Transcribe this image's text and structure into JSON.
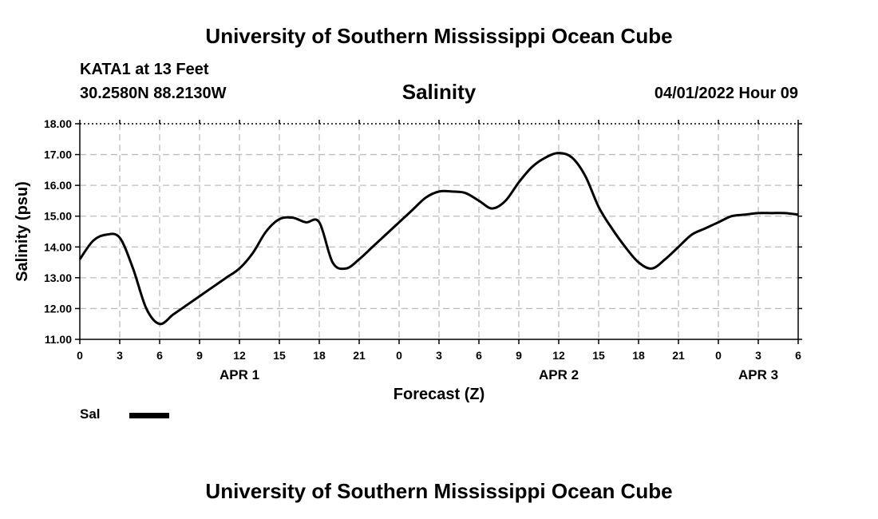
{
  "header": {
    "title": "University of Southern Mississippi Ocean Cube",
    "station": "KATA1 at 13 Feet",
    "coords": "30.2580N  88.2130W",
    "datetime": "04/01/2022 Hour 09"
  },
  "footer": {
    "title": "University of Southern Mississippi Ocean Cube"
  },
  "legend": {
    "entries": [
      {
        "label": "Sal",
        "color": "#000000"
      }
    ]
  },
  "chart_data": {
    "type": "line",
    "title": "Salinity",
    "xlabel": "Forecast (Z)",
    "ylabel": "Salinity (psu)",
    "ylim": [
      11,
      18
    ],
    "xlim": [
      0,
      54
    ],
    "y_ticks": [
      "11.00",
      "12.00",
      "13.00",
      "14.00",
      "15.00",
      "16.00",
      "17.00",
      "18.00"
    ],
    "x_ticks": [
      "0",
      "3",
      "6",
      "9",
      "12",
      "15",
      "18",
      "21",
      "0",
      "3",
      "6",
      "9",
      "12",
      "15",
      "18",
      "21",
      "0",
      "3",
      "6"
    ],
    "day_labels": [
      {
        "label": "APR 1",
        "x": 12
      },
      {
        "label": "APR 2",
        "x": 36
      },
      {
        "label": "APR 3",
        "x": 51
      }
    ],
    "grid": true,
    "series": [
      {
        "name": "Sal",
        "color": "#000000",
        "x": [
          0,
          1,
          2,
          3,
          4,
          5,
          6,
          7,
          8,
          9,
          10,
          11,
          12,
          13,
          14,
          15,
          16,
          17,
          18,
          19,
          20,
          21,
          22,
          23,
          24,
          25,
          26,
          27,
          28,
          29,
          30,
          31,
          32,
          33,
          34,
          35,
          36,
          37,
          38,
          39,
          40,
          41,
          42,
          43,
          44,
          45,
          46,
          47,
          48,
          49,
          50,
          51,
          52,
          53,
          54
        ],
        "y": [
          13.6,
          14.2,
          14.4,
          14.3,
          13.3,
          12.0,
          11.5,
          11.8,
          12.1,
          12.4,
          12.7,
          13.0,
          13.3,
          13.8,
          14.5,
          14.9,
          14.95,
          14.8,
          14.8,
          13.5,
          13.3,
          13.6,
          14.0,
          14.4,
          14.8,
          15.2,
          15.6,
          15.8,
          15.8,
          15.75,
          15.5,
          15.25,
          15.5,
          16.1,
          16.6,
          16.9,
          17.05,
          16.9,
          16.3,
          15.3,
          14.6,
          14.0,
          13.5,
          13.3,
          13.6,
          14.0,
          14.4,
          14.6,
          14.8,
          15.0,
          15.05,
          15.1,
          15.1,
          15.1,
          15.05
        ]
      }
    ]
  }
}
